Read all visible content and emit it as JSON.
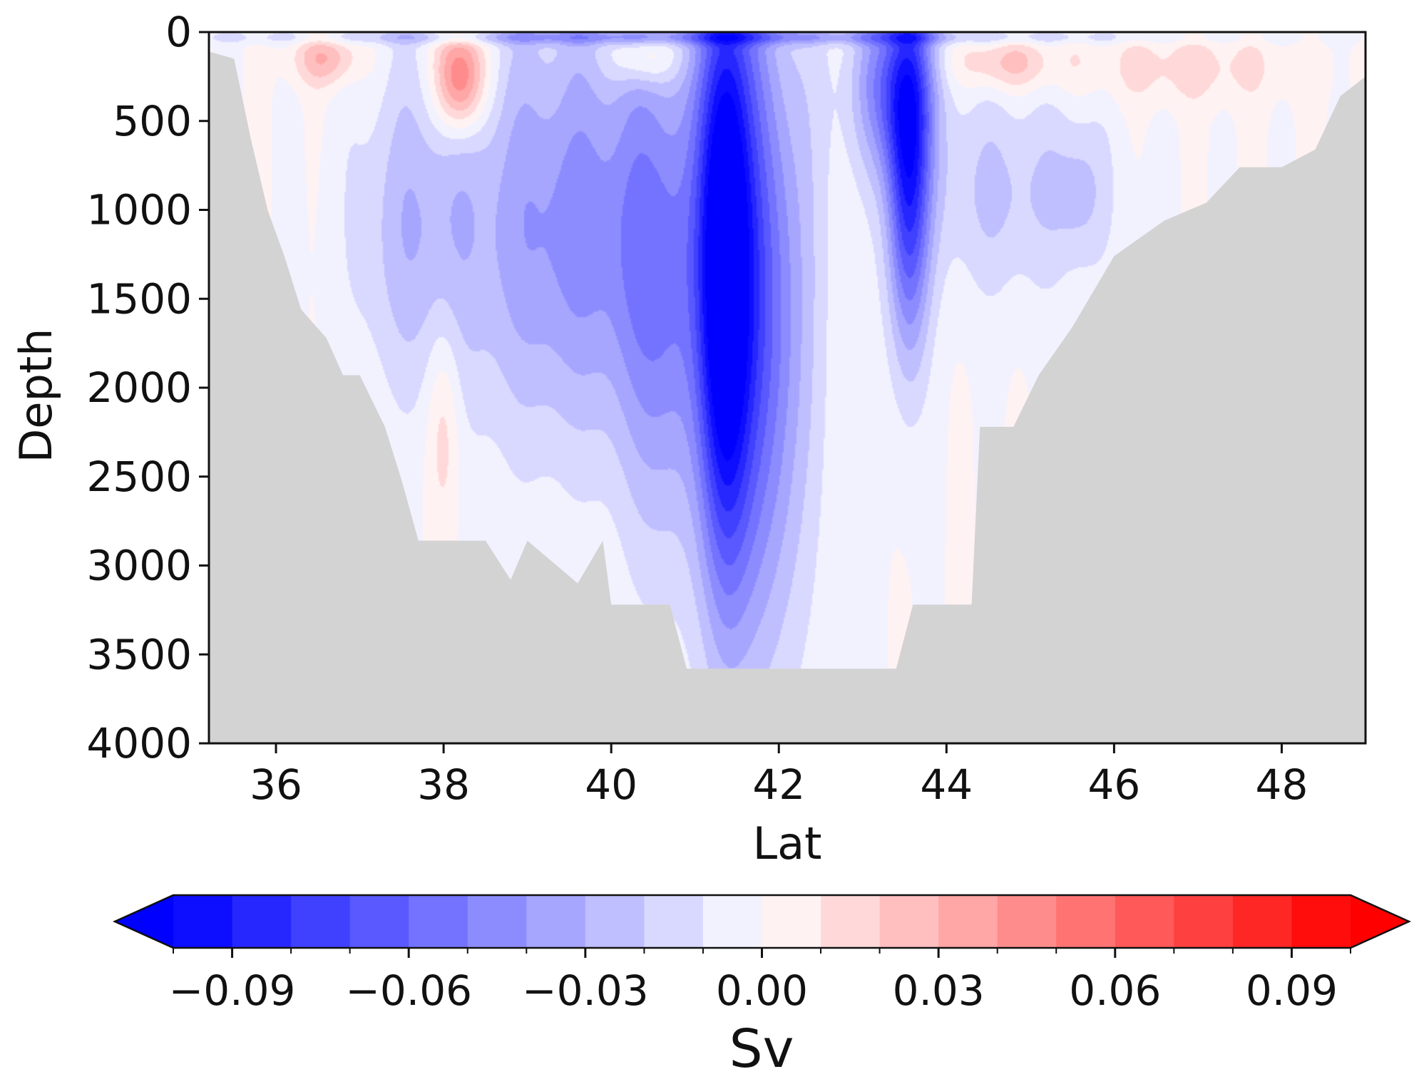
{
  "chart_data": {
    "type": "heatmap",
    "title": "",
    "xlabel": "Lat",
    "ylabel": "Depth",
    "x_ticks": [
      36,
      38,
      40,
      42,
      44,
      46,
      48
    ],
    "y_ticks": [
      0,
      500,
      1000,
      1500,
      2000,
      2500,
      3000,
      3500,
      4000
    ],
    "xlim": [
      35.2,
      49.0
    ],
    "ylim": [
      4000,
      0
    ],
    "y_inverted": true,
    "grid": false,
    "land_mask_color": "#d3d3d3",
    "colormap": "bwr",
    "colorbar": {
      "label": "Sv",
      "orientation": "horizontal",
      "placement": "bottom",
      "extend": "both",
      "range": [
        -0.1,
        0.1
      ],
      "levels": 21,
      "ticks": [
        -0.09,
        -0.06,
        -0.03,
        0.0,
        0.03,
        0.06,
        0.09
      ],
      "tick_labels": [
        "−0.09",
        "−0.06",
        "−0.03",
        "0.00",
        "0.03",
        "0.06",
        "0.09"
      ]
    },
    "bathymetry": [
      {
        "lat": 35.2,
        "depth": 110
      },
      {
        "lat": 35.5,
        "depth": 150
      },
      {
        "lat": 35.7,
        "depth": 600
      },
      {
        "lat": 35.9,
        "depth": 1000
      },
      {
        "lat": 36.1,
        "depth": 1260
      },
      {
        "lat": 36.3,
        "depth": 1560
      },
      {
        "lat": 36.6,
        "depth": 1720
      },
      {
        "lat": 36.8,
        "depth": 1930
      },
      {
        "lat": 37.0,
        "depth": 1930
      },
      {
        "lat": 37.3,
        "depth": 2220
      },
      {
        "lat": 37.5,
        "depth": 2520
      },
      {
        "lat": 37.7,
        "depth": 2860
      },
      {
        "lat": 38.5,
        "depth": 2860
      },
      {
        "lat": 38.8,
        "depth": 3080
      },
      {
        "lat": 39.0,
        "depth": 2860
      },
      {
        "lat": 39.6,
        "depth": 3100
      },
      {
        "lat": 39.9,
        "depth": 2860
      },
      {
        "lat": 40.0,
        "depth": 3220
      },
      {
        "lat": 40.7,
        "depth": 3220
      },
      {
        "lat": 40.9,
        "depth": 3580
      },
      {
        "lat": 43.4,
        "depth": 3580
      },
      {
        "lat": 43.6,
        "depth": 3220
      },
      {
        "lat": 44.3,
        "depth": 3220
      },
      {
        "lat": 44.4,
        "depth": 2220
      },
      {
        "lat": 44.8,
        "depth": 2220
      },
      {
        "lat": 45.1,
        "depth": 1930
      },
      {
        "lat": 45.5,
        "depth": 1660
      },
      {
        "lat": 46.0,
        "depth": 1260
      },
      {
        "lat": 46.6,
        "depth": 1060
      },
      {
        "lat": 47.1,
        "depth": 960
      },
      {
        "lat": 47.5,
        "depth": 760
      },
      {
        "lat": 48.0,
        "depth": 760
      },
      {
        "lat": 48.4,
        "depth": 660
      },
      {
        "lat": 48.7,
        "depth": 360
      },
      {
        "lat": 49.0,
        "depth": 250
      }
    ],
    "features": [
      {
        "lat": 41.35,
        "depth": 1300,
        "lat_width": 0.3,
        "depth_extent": 1700,
        "value": -0.095
      },
      {
        "lat": 41.75,
        "depth": 1600,
        "lat_width": 0.6,
        "depth_extent": 1900,
        "value": -0.06
      },
      {
        "lat": 43.55,
        "depth": 800,
        "lat_width": 0.25,
        "depth_extent": 1000,
        "value": -0.08
      },
      {
        "lat": 43.35,
        "depth": 300,
        "lat_width": 0.5,
        "depth_extent": 500,
        "value": -0.05
      },
      {
        "lat": 39.6,
        "depth": 1100,
        "lat_width": 1.5,
        "depth_extent": 1200,
        "value": -0.045
      },
      {
        "lat": 40.6,
        "depth": 1600,
        "lat_width": 0.5,
        "depth_extent": 1500,
        "value": -0.03
      },
      {
        "lat": 37.6,
        "depth": 1100,
        "lat_width": 0.7,
        "depth_extent": 900,
        "value": -0.022
      },
      {
        "lat": 44.7,
        "depth": 900,
        "lat_width": 1.1,
        "depth_extent": 600,
        "value": -0.022
      },
      {
        "lat": 45.6,
        "depth": 900,
        "lat_width": 0.3,
        "depth_extent": 400,
        "value": -0.015
      },
      {
        "lat": 38.0,
        "depth": 2200,
        "lat_width": 0.2,
        "depth_extent": 600,
        "value": 0.02
      },
      {
        "lat": 38.2,
        "depth": 250,
        "lat_width": 0.3,
        "depth_extent": 300,
        "value": 0.065
      },
      {
        "lat": 36.6,
        "depth": 150,
        "lat_width": 0.4,
        "depth_extent": 150,
        "value": 0.03
      },
      {
        "lat": 40.4,
        "depth": 150,
        "lat_width": 0.4,
        "depth_extent": 150,
        "value": 0.03
      },
      {
        "lat": 44.7,
        "depth": 180,
        "lat_width": 0.6,
        "depth_extent": 150,
        "value": 0.025
      },
      {
        "lat": 46.8,
        "depth": 200,
        "lat_width": 1.4,
        "depth_extent": 200,
        "value": 0.015
      },
      {
        "lat": 41.0,
        "depth": 30,
        "lat_width": 5.5,
        "depth_extent": 40,
        "value": -0.03
      }
    ]
  },
  "colors": {
    "land": "#d3d3d3",
    "frame": "#111111",
    "cmap_low": "#0000ff",
    "cmap_mid": "#ffffff",
    "cmap_high": "#ff0000"
  }
}
